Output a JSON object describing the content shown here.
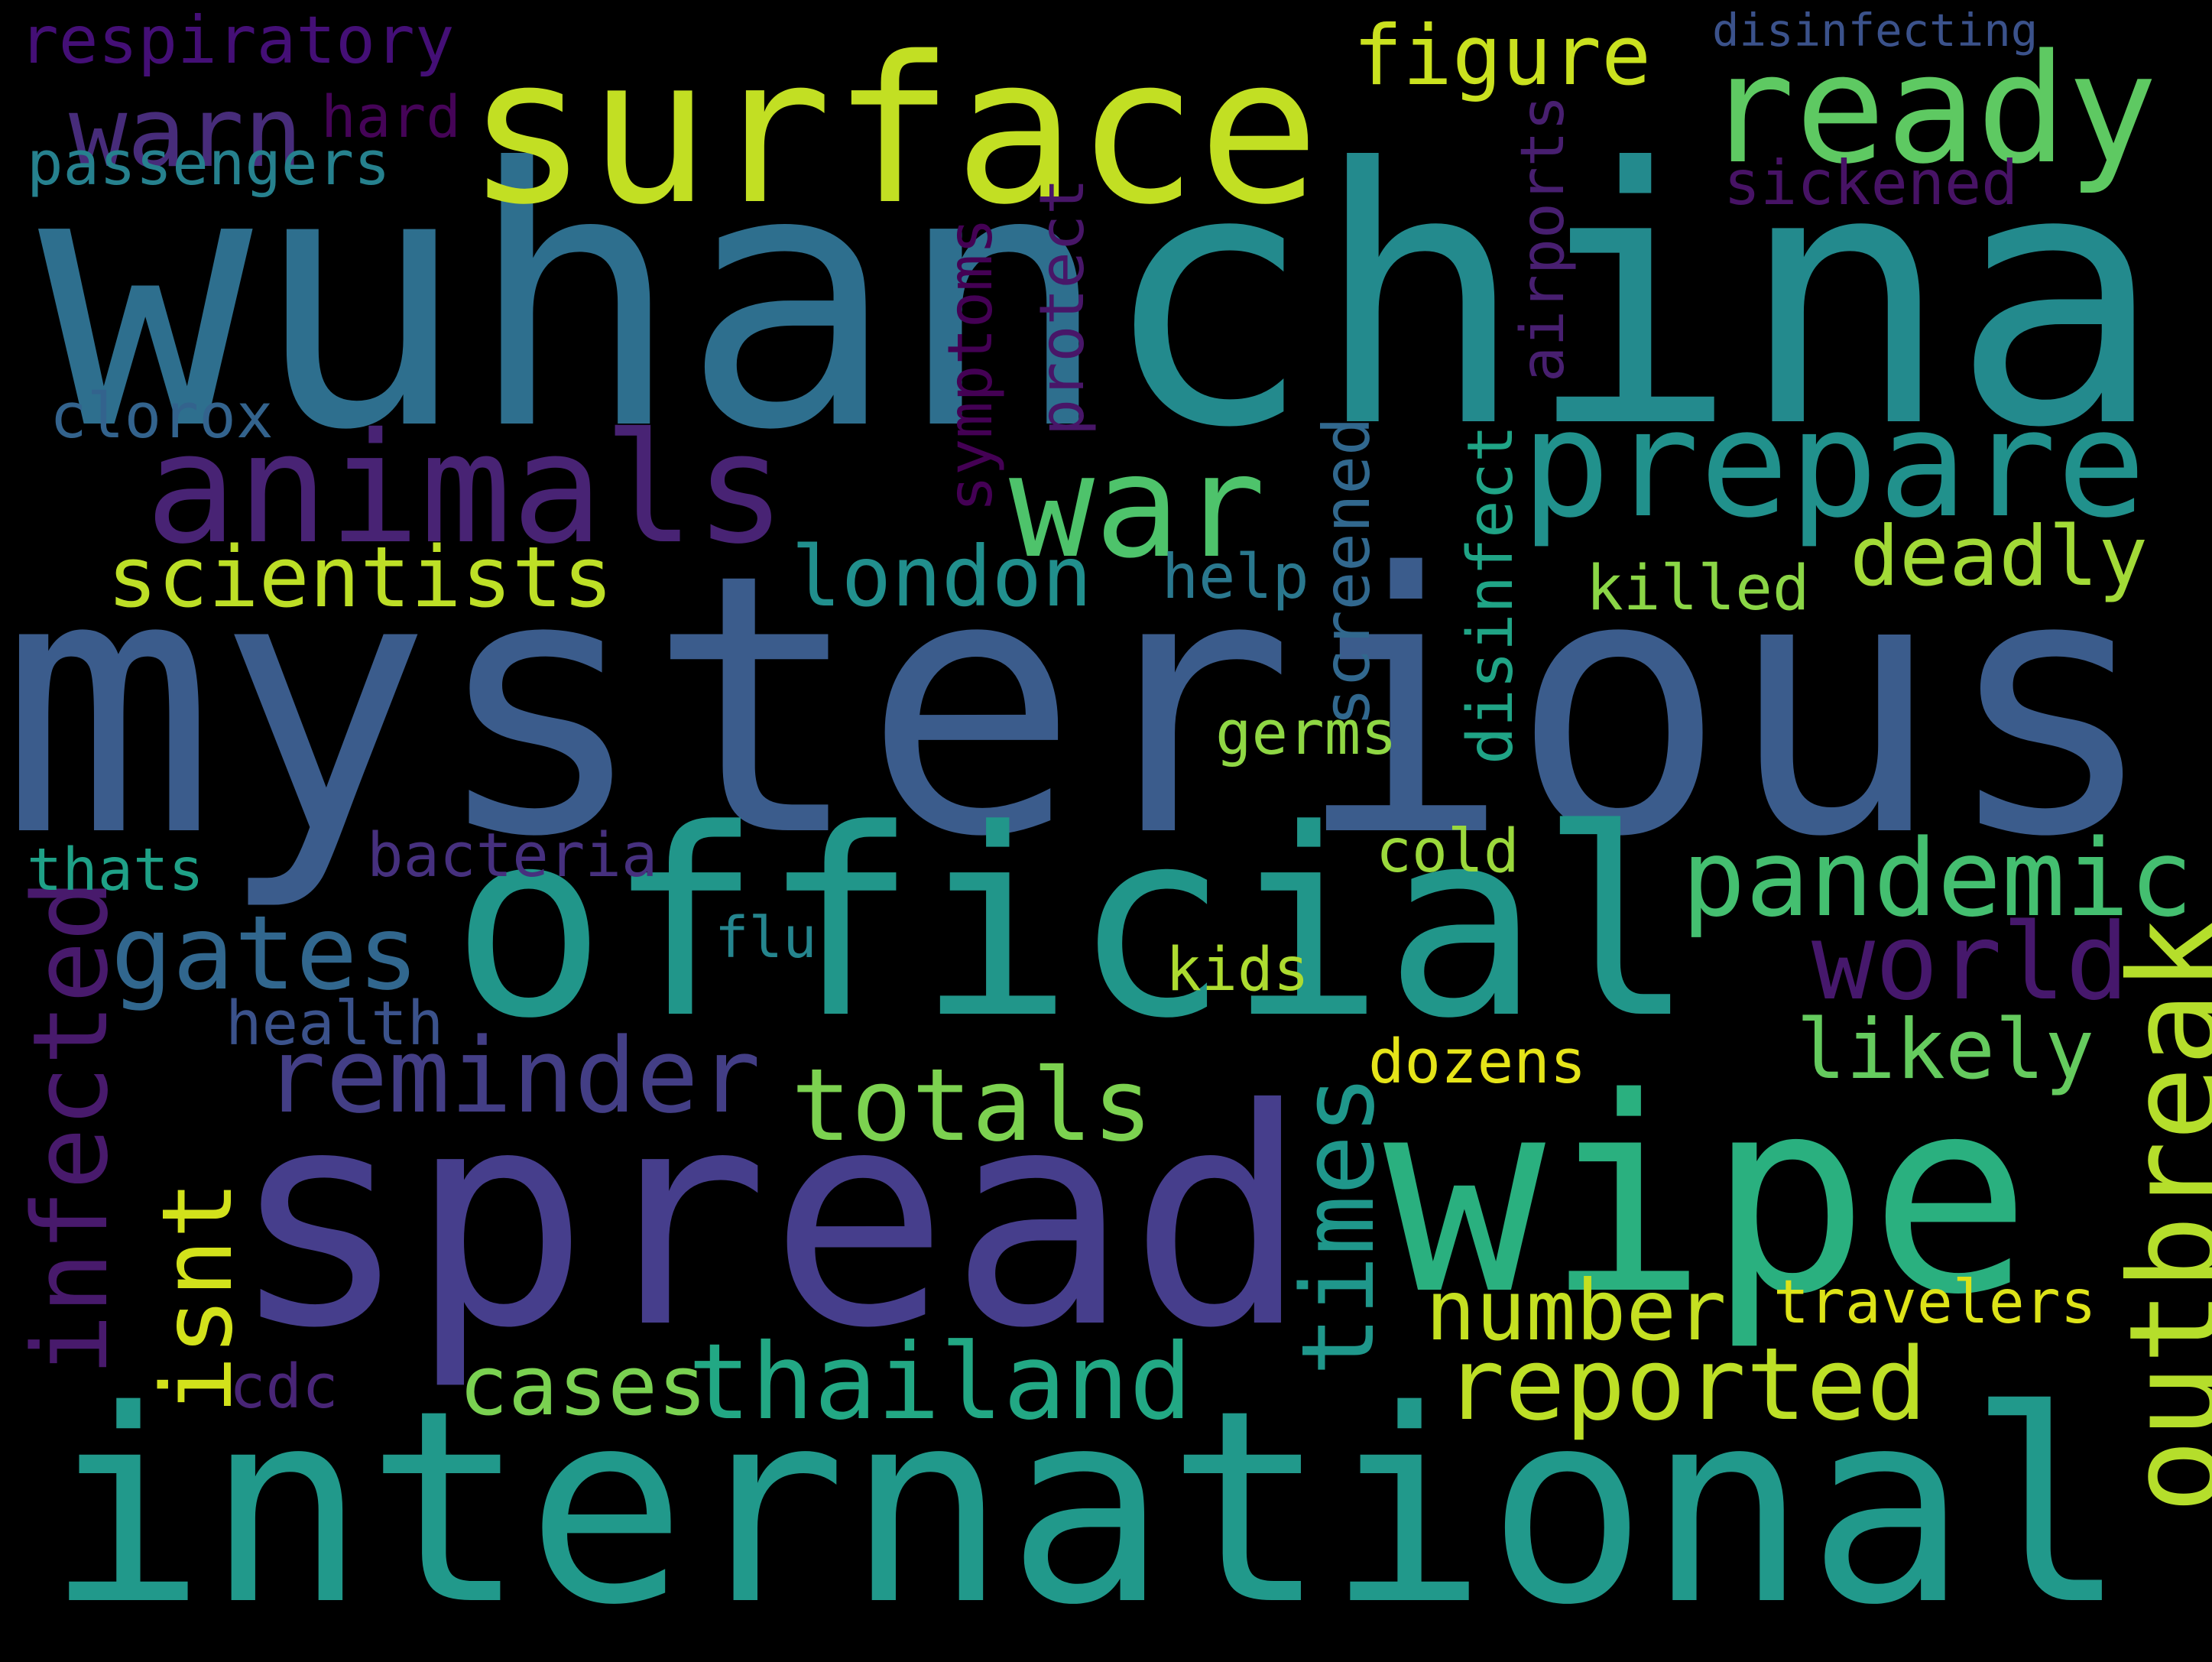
{
  "words": [
    {
      "text": "mysterious",
      "color": "#3b5c8c",
      "vertical": false
    },
    {
      "text": "international",
      "color": "#21998b",
      "vertical": false
    },
    {
      "text": "china",
      "color": "#238a8d",
      "vertical": false
    },
    {
      "text": "wuhan",
      "color": "#2e6f8e",
      "vertical": false
    },
    {
      "text": "official",
      "color": "#21968a",
      "vertical": false
    },
    {
      "text": "spread",
      "color": "#463e8c",
      "vertical": false
    },
    {
      "text": "wipe",
      "color": "#2ab07f",
      "vertical": false
    },
    {
      "text": "surface",
      "color": "#c2df23",
      "vertical": false
    },
    {
      "text": "ready",
      "color": "#5ec962",
      "vertical": false
    },
    {
      "text": "prepare",
      "color": "#21918c",
      "vertical": false
    },
    {
      "text": "animals",
      "color": "#482374",
      "vertical": false
    },
    {
      "text": "war",
      "color": "#4ec36b",
      "vertical": false
    },
    {
      "text": "pandemic",
      "color": "#44bf70",
      "vertical": false
    },
    {
      "text": "warn",
      "color": "#472c7a",
      "vertical": false
    },
    {
      "text": "world",
      "color": "#46186c",
      "vertical": false
    },
    {
      "text": "gates",
      "color": "#31678e",
      "vertical": false
    },
    {
      "text": "reminder",
      "color": "#433e85",
      "vertical": false
    },
    {
      "text": "totals",
      "color": "#7cd250",
      "vertical": false
    },
    {
      "text": "thailand",
      "color": "#22a884",
      "vertical": false
    },
    {
      "text": "reported",
      "color": "#bddf26",
      "vertical": false
    },
    {
      "text": "london",
      "color": "#218f8d",
      "vertical": false
    },
    {
      "text": "scientists",
      "color": "#bddf26",
      "vertical": false
    },
    {
      "text": "deadly",
      "color": "#a2da37",
      "vertical": false
    },
    {
      "text": "figure",
      "color": "#cae11f",
      "vertical": false
    },
    {
      "text": "number",
      "color": "#c5e021",
      "vertical": false
    },
    {
      "text": "likely",
      "color": "#65cb5e",
      "vertical": false
    },
    {
      "text": "cases",
      "color": "#7ad151",
      "vertical": false
    },
    {
      "text": "outbreak",
      "color": "#b5de2b",
      "vertical": true
    },
    {
      "text": "infected",
      "color": "#481a6c",
      "vertical": true
    },
    {
      "text": "isnt",
      "color": "#d2e21b",
      "vertical": true
    },
    {
      "text": "times",
      "color": "#1f978b",
      "vertical": true
    },
    {
      "text": "respiratory",
      "color": "#440f76",
      "vertical": false
    },
    {
      "text": "passengers",
      "color": "#26818e",
      "vertical": false
    },
    {
      "text": "hard",
      "color": "#450457",
      "vertical": false
    },
    {
      "text": "sickened",
      "color": "#471365",
      "vertical": false
    },
    {
      "text": "disinfecting",
      "color": "#3b528b",
      "vertical": false
    },
    {
      "text": "clorox",
      "color": "#33638d",
      "vertical": false
    },
    {
      "text": "help",
      "color": "#2a788e",
      "vertical": false
    },
    {
      "text": "killed",
      "color": "#8bd646",
      "vertical": false
    },
    {
      "text": "germs",
      "color": "#8fd744",
      "vertical": false
    },
    {
      "text": "cold",
      "color": "#9bd93c",
      "vertical": false
    },
    {
      "text": "thats",
      "color": "#1fa187",
      "vertical": false
    },
    {
      "text": "bacteria",
      "color": "#46307e",
      "vertical": false
    },
    {
      "text": "flu",
      "color": "#25858e",
      "vertical": false
    },
    {
      "text": "kids",
      "color": "#addc30",
      "vertical": false
    },
    {
      "text": "health",
      "color": "#3b528b",
      "vertical": false
    },
    {
      "text": "dozens",
      "color": "#e5e419",
      "vertical": false
    },
    {
      "text": "travelers",
      "color": "#dde318",
      "vertical": false
    },
    {
      "text": "cdc",
      "color": "#482576",
      "vertical": false
    },
    {
      "text": "symptoms",
      "color": "#440154",
      "vertical": true
    },
    {
      "text": "protect",
      "color": "#481668",
      "vertical": true
    },
    {
      "text": "screened",
      "color": "#31688e",
      "vertical": true
    },
    {
      "text": "airports",
      "color": "#481f70",
      "vertical": true
    },
    {
      "text": "disinfect",
      "color": "#20a486",
      "vertical": true
    }
  ]
}
